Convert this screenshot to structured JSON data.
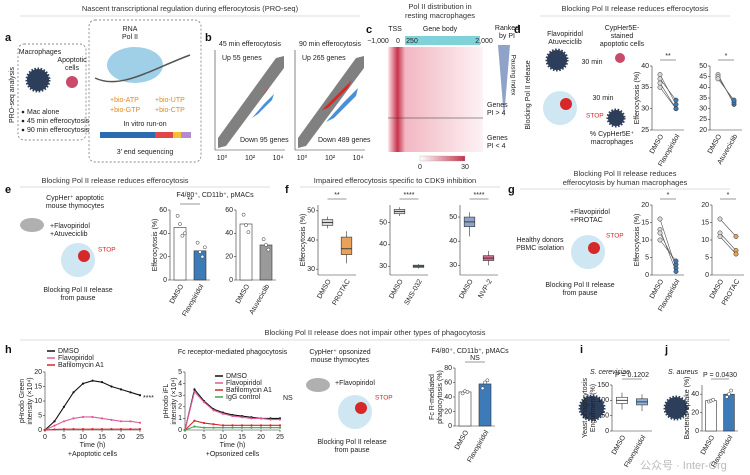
{
  "figure": {
    "panel_letters": [
      "a",
      "b",
      "c",
      "d",
      "e",
      "f",
      "g",
      "h",
      "i",
      "j"
    ],
    "header_top": "Nascent transcriptional regulation during efferocytosis (PRO-seq)",
    "header_bottom": "Blocking Pol II release does not impair other types of phagocytosis",
    "a": {
      "side": "PRO-seq analysis",
      "macrophages": "Macrophages",
      "apoptotic": [
        "Apoptotic",
        "cells"
      ],
      "conditions": [
        "Mac alone",
        "45 min efferocytosis",
        "90 min efferocytosis"
      ],
      "polii": [
        "RNA",
        "Pol II"
      ],
      "nucleotides": [
        "+bio-ATP",
        "+bio-UTP",
        "+bio-GTP",
        "+bio-CTP"
      ],
      "runon": "In vitro run-on",
      "seq": "3′ end sequencing"
    },
    "b": {
      "plots": [
        {
          "title": "45 min efferocytosis",
          "up": "Up 55 genes",
          "down": "Down 95 genes"
        },
        {
          "title": "90 min efferocytosis",
          "up": "Up 265 genes",
          "down": "Down 489 genes"
        }
      ],
      "xtick_labels": [
        "10⁰",
        "10²",
        "10⁴"
      ]
    },
    "c": {
      "title": [
        "Pol II distribution in",
        "resting macrophages"
      ],
      "tss": "TSS",
      "gene_body": "Gene body",
      "positions": [
        "−1,000",
        "0",
        "250",
        "2,000"
      ],
      "ranked": [
        "Ranked",
        "by PI"
      ],
      "pausing": "Pausing index",
      "high": [
        "Genes",
        "PI > 4"
      ],
      "low": [
        "Genes",
        "PI < 4"
      ],
      "scale": [
        "0",
        "30"
      ]
    },
    "d": {
      "title": "Blocking Pol II release reduces efferocytosis",
      "side": "Blocking Pol II release",
      "drugs": [
        "Flavopiridol",
        "Atuveciclib"
      ],
      "cells": [
        "CypHer5E-",
        "stained",
        "apoptotic cells"
      ],
      "time": [
        "30 min",
        "30 min"
      ],
      "stop": "STOP",
      "readout": [
        "% CypHer5E⁺",
        "macrophages"
      ]
    },
    "e": {
      "title": "Blocking Pol II release reduces efferocytosis",
      "cells": [
        "CypHer⁺ apoptotic",
        "mouse thymocytes"
      ],
      "drugs": [
        "+Flavopiridol",
        "+Atuveciclib"
      ],
      "stop": "STOP",
      "caption": [
        "Blocking Pol II release",
        "from pause"
      ],
      "gating": "F4/80⁺, CD11b⁺, pMACs"
    },
    "f": {
      "title": "Impaired efferocytosis specific to CDK9 inhibition"
    },
    "g": {
      "title": [
        "Blocking Pol II release reduces",
        "efferocytosis by human macrophages"
      ],
      "drugs": [
        "+Flavopiridol",
        "+PROTAC"
      ],
      "donors": [
        "Healthy donors",
        "PBMC isolation"
      ],
      "stop": "STOP",
      "caption": [
        "Blocking Pol II release",
        "from pause"
      ]
    },
    "h": {
      "cells": [
        "CypHer⁺ opsonized",
        "mouse thymocytes"
      ],
      "drug": "+Flavopiridol",
      "stop": "STOP",
      "caption": [
        "Blocking Pol II release",
        "from pause"
      ],
      "gating": "F4/80⁺, CD11b⁺, pMACs"
    },
    "i": {
      "organism": "S. cerevisiae"
    },
    "j": {
      "organism": "S. aureus"
    },
    "watermark": "公众号 · Inter-Org"
  },
  "chart_data": [
    {
      "type": "slope",
      "ylabel": "Efferocytosis (%)",
      "categories": [
        "DMSO",
        "Flavopiridol"
      ],
      "colors": [
        "#d8d8d8",
        "#3d7ab8"
      ],
      "series": [
        {
          "values": [
            38,
            31
          ]
        },
        {
          "values": [
            37,
            32
          ]
        },
        {
          "values": [
            36,
            30
          ]
        },
        {
          "values": [
            35,
            30
          ]
        }
      ],
      "ylim": [
        25,
        40
      ],
      "yticks": [
        25,
        30,
        35,
        40
      ],
      "annotation": "**"
    },
    {
      "type": "slope",
      "categories": [
        "DMSO",
        "Atuveciclib"
      ],
      "colors": [
        "#d8d8d8",
        "#3d7ab8"
      ],
      "series": [
        {
          "values": [
            46,
            32
          ]
        },
        {
          "values": [
            45,
            33
          ]
        },
        {
          "values": [
            44,
            34
          ]
        }
      ],
      "ylim": [
        20,
        50
      ],
      "yticks": [
        20,
        25,
        30,
        35,
        40,
        45,
        50
      ],
      "annotation": "*"
    },
    {
      "type": "bar",
      "ylabel": "Efferocytosis (%)",
      "categories": [
        "DMSO",
        "Flavopiridol"
      ],
      "colors": [
        "#ffffff",
        "#3d7ab8"
      ],
      "values": [
        45,
        25
      ],
      "points": [
        [
          55,
          48,
          38,
          40
        ],
        [
          32,
          24,
          20,
          28
        ]
      ],
      "ylim": [
        0,
        60
      ],
      "yticks": [
        0,
        20,
        40,
        60
      ],
      "annotation": "**"
    },
    {
      "type": "bar",
      "categories": [
        "DMSO",
        "Atuveciclib"
      ],
      "colors": [
        "#ffffff",
        "#9a9a9a"
      ],
      "values": [
        48,
        30
      ],
      "points": [
        [
          56,
          47,
          41
        ],
        [
          35,
          30,
          26
        ]
      ],
      "ylim": [
        0,
        60
      ],
      "yticks": [
        0,
        20,
        40,
        60
      ]
    },
    {
      "type": "box",
      "ylabel": "Efferocytosis (%)",
      "categories": [
        "DMSO",
        "PROTAC"
      ],
      "colors": [
        "#d8d8d8",
        "#e8a25a"
      ],
      "values": [
        [
          44,
          45,
          46,
          47,
          48
        ],
        [
          32,
          35,
          37,
          41,
          43
        ]
      ],
      "ylim": [
        28,
        52
      ],
      "yticks": [
        30,
        40,
        50
      ],
      "annotation": "**"
    },
    {
      "type": "box",
      "categories": [
        "DMSO",
        "SNS-032"
      ],
      "colors": [
        "#d8d8d8",
        "#6aa86a"
      ],
      "values": [
        [
          53,
          54,
          55,
          56,
          57
        ],
        [
          29,
          29.5,
          30,
          30.5,
          31
        ]
      ],
      "ylim": [
        26,
        58
      ],
      "yticks": [
        30,
        40,
        50
      ],
      "annotation": "****"
    },
    {
      "type": "box",
      "categories": [
        "DMSO",
        "NVP-2"
      ],
      "colors": [
        "#8fa3c8",
        "#d9668f"
      ],
      "values": [
        [
          42,
          46,
          48,
          50,
          52
        ],
        [
          30,
          32,
          33,
          34,
          36
        ]
      ],
      "ylim": [
        26,
        55
      ],
      "yticks": [
        30,
        40,
        50
      ],
      "annotation": "****"
    },
    {
      "type": "slope",
      "ylabel": "Efferocytosis (%)",
      "categories": [
        "DMSO",
        "Flavopiridol"
      ],
      "colors": [
        "#d8d8d8",
        "#3d7ab8"
      ],
      "series": [
        {
          "values": [
            16,
            2
          ]
        },
        {
          "values": [
            13,
            1
          ]
        },
        {
          "values": [
            12,
            3
          ]
        },
        {
          "values": [
            10,
            4
          ]
        }
      ],
      "ylim": [
        0,
        20
      ],
      "yticks": [
        0,
        5,
        10,
        15,
        20
      ],
      "annotation": "*"
    },
    {
      "type": "slope",
      "categories": [
        "DMSO",
        "PROTAC"
      ],
      "colors": [
        "#d8d8d8",
        "#e8a25a"
      ],
      "series": [
        {
          "values": [
            16,
            11
          ]
        },
        {
          "values": [
            12,
            7
          ]
        },
        {
          "values": [
            11,
            6
          ]
        }
      ],
      "ylim": [
        0,
        20
      ],
      "yticks": [
        0,
        5,
        10,
        15,
        20
      ],
      "annotation": "*"
    },
    {
      "type": "line",
      "ylabel": [
        "pHrodo Green",
        "intensity (×10⁴)"
      ],
      "xlabel": "Time (h)",
      "note": "+Apoptotic cells",
      "x": [
        0,
        2.5,
        5,
        7.5,
        10,
        12.5,
        15,
        17.5,
        20,
        22.5,
        25
      ],
      "series": [
        {
          "name": "DMSO",
          "color": "#111111",
          "values": [
            0,
            3,
            8,
            13,
            16,
            17,
            16.5,
            15,
            14,
            13,
            12
          ]
        },
        {
          "name": "Flavopiridol",
          "color": "#e05a9a",
          "values": [
            0,
            1.5,
            3,
            4,
            4.5,
            4.5,
            4,
            3.5,
            3,
            3,
            2.5
          ]
        },
        {
          "name": "Bafilomycin A1",
          "color": "#d62828",
          "values": [
            0,
            0.2,
            0.3,
            0.3,
            0.3,
            0.3,
            0.3,
            0.3,
            0.3,
            0.3,
            0.3
          ]
        }
      ],
      "xlim": [
        0,
        25
      ],
      "xticks": [
        0,
        5,
        10,
        15,
        20,
        25
      ],
      "ylim": [
        0,
        20
      ],
      "yticks": [
        0,
        5,
        10,
        15,
        20
      ],
      "annotation": "****"
    },
    {
      "type": "line",
      "title": "Fc receptor-mediated phagocytosis",
      "ylabel": [
        "pHrodo iFL",
        "intensity (×10⁴)"
      ],
      "xlabel": "Time (h)",
      "note": "+Opsonized cells",
      "x": [
        0,
        2.5,
        5,
        7.5,
        10,
        12.5,
        15,
        17.5,
        20,
        22.5,
        25
      ],
      "series": [
        {
          "name": "DMSO",
          "color": "#111111",
          "values": [
            0,
            3.5,
            2.5,
            1.8,
            1.5,
            1.3,
            1.2,
            1.1,
            1,
            1,
            1
          ]
        },
        {
          "name": "Flavopiridol",
          "color": "#e05a9a",
          "values": [
            0,
            3.3,
            2.4,
            1.7,
            1.4,
            1.2,
            1.1,
            1,
            1,
            0.9,
            0.9
          ]
        },
        {
          "name": "Bafilomycin A1",
          "color": "#d62828",
          "values": [
            0,
            0.8,
            0.6,
            0.5,
            0.4,
            0.4,
            0.4,
            0.4,
            0.4,
            0.4,
            0.4
          ]
        },
        {
          "name": "IgG control",
          "color": "#3aa655",
          "values": [
            0,
            0.3,
            0.2,
            0.2,
            0.2,
            0.2,
            0.2,
            0.2,
            0.2,
            0.2,
            0.2
          ]
        }
      ],
      "xlim": [
        0,
        25
      ],
      "xticks": [
        0,
        5,
        10,
        15,
        20,
        25
      ],
      "ylim": [
        0,
        5
      ],
      "yticks": [
        0,
        1,
        2,
        3,
        4,
        5
      ],
      "annotation": "NS"
    },
    {
      "type": "bar",
      "ylabel": [
        "Fc R-mediated",
        "phagocytosis (%)"
      ],
      "categories": [
        "DMSO",
        "Flavopiridol"
      ],
      "colors": [
        "#ffffff",
        "#3d7ab8"
      ],
      "values": [
        47,
        58
      ],
      "points": [
        [
          45,
          48,
          47
        ],
        [
          52,
          60,
          63
        ]
      ],
      "ylim": [
        0,
        80
      ],
      "yticks": [
        0,
        20,
        40,
        60,
        80
      ],
      "annotation": "NS"
    },
    {
      "type": "box",
      "ylabel": [
        "Yeast phagocytosis",
        "Engulfment (%)"
      ],
      "categories": [
        "DMSO",
        "Flavopiridol"
      ],
      "colors": [
        "#ffffff",
        "#8fb3e0"
      ],
      "values": [
        [
          70,
          90,
          100,
          110,
          125
        ],
        [
          65,
          85,
          95,
          105,
          120
        ]
      ],
      "ylim": [
        0,
        150
      ],
      "yticks": [
        0,
        50,
        100,
        150
      ],
      "annotation": "P = 0.1202"
    },
    {
      "type": "bar",
      "ylabel": "Bacterial uptake (%)",
      "categories": [
        "DMSO",
        "Flavopiridol"
      ],
      "colors": [
        "#ffffff",
        "#3d7ab8"
      ],
      "values": [
        33,
        40
      ],
      "points": [
        [
          32,
          33,
          34
        ],
        [
          37,
          40,
          44
        ]
      ],
      "ylim": [
        0,
        50
      ],
      "yticks": [
        0,
        20,
        40
      ],
      "annotation": "P = 0.0430"
    }
  ]
}
